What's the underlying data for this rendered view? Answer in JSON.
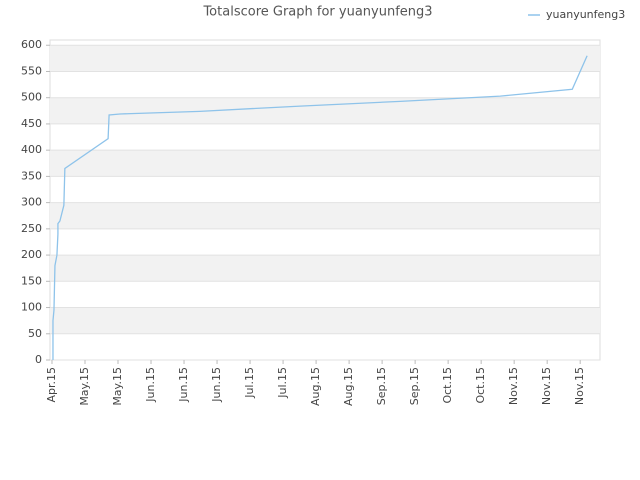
{
  "chart_data": {
    "type": "line",
    "title": "Totalscore Graph for yuanyunfeng3",
    "x": [
      0.03,
      0.03,
      0.06,
      0.09,
      0.15,
      0.18,
      0.18,
      0.24,
      0.36,
      0.39,
      1.7,
      1.73,
      2.06,
      4.48,
      7.52,
      10.55,
      13.58,
      15.76,
      16.21
    ],
    "series": [
      {
        "name": "yuanyunfeng3",
        "color": "#8ec3ea",
        "values": [
          0,
          75,
          95,
          180,
          200,
          240,
          260,
          265,
          295,
          365,
          422,
          467,
          469,
          474,
          484,
          493,
          503,
          516,
          580
        ]
      }
    ],
    "xlim": [
      -0.06,
      16.6
    ],
    "xticks": [
      {
        "value": 0,
        "label": "Apr.15"
      },
      {
        "value": 1,
        "label": "May.15"
      },
      {
        "value": 2,
        "label": "May.15"
      },
      {
        "value": 3,
        "label": "Jun.15"
      },
      {
        "value": 4,
        "label": "Jun.15"
      },
      {
        "value": 5,
        "label": "Jun.15"
      },
      {
        "value": 6,
        "label": "Jul.15"
      },
      {
        "value": 7,
        "label": "Jul.15"
      },
      {
        "value": 8,
        "label": "Aug.15"
      },
      {
        "value": 9,
        "label": "Aug.15"
      },
      {
        "value": 10,
        "label": "Sep.15"
      },
      {
        "value": 11,
        "label": "Sep.15"
      },
      {
        "value": 12,
        "label": "Oct.15"
      },
      {
        "value": 13,
        "label": "Oct.15"
      },
      {
        "value": 14,
        "label": "Nov.15"
      },
      {
        "value": 15,
        "label": "Nov.15"
      },
      {
        "value": 16,
        "label": "Nov.15"
      }
    ],
    "ylim": [
      0,
      610
    ],
    "yticks": [
      0,
      50,
      100,
      150,
      200,
      250,
      300,
      350,
      400,
      450,
      500,
      550,
      600
    ],
    "grid": true,
    "legend": "top-right"
  }
}
